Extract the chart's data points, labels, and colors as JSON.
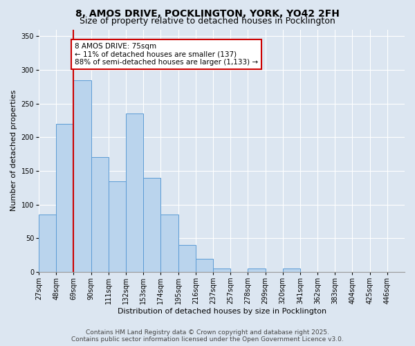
{
  "title_line1": "8, AMOS DRIVE, POCKLINGTON, YORK, YO42 2FH",
  "title_line2": "Size of property relative to detached houses in Pocklington",
  "xlabel": "Distribution of detached houses by size in Pocklington",
  "ylabel": "Number of detached properties",
  "bin_labels": [
    "27sqm",
    "48sqm",
    "69sqm",
    "90sqm",
    "111sqm",
    "132sqm",
    "153sqm",
    "174sqm",
    "195sqm",
    "216sqm",
    "237sqm",
    "257sqm",
    "278sqm",
    "299sqm",
    "320sqm",
    "341sqm",
    "362sqm",
    "383sqm",
    "404sqm",
    "425sqm",
    "446sqm"
  ],
  "bar_values": [
    85,
    220,
    285,
    170,
    135,
    235,
    140,
    85,
    40,
    20,
    5,
    0,
    5,
    0,
    5,
    0,
    0,
    0,
    0,
    0,
    0
  ],
  "bar_color": "#bad4ed",
  "bar_edge_color": "#5b9bd5",
  "vline_x": 2,
  "vline_color": "#cc0000",
  "annotation_text": "8 AMOS DRIVE: 75sqm\n← 11% of detached houses are smaller (137)\n88% of semi-detached houses are larger (1,133) →",
  "annotation_box_color": "#ffffff",
  "annotation_box_edge": "#cc0000",
  "ylim": [
    0,
    360
  ],
  "yticks": [
    0,
    50,
    100,
    150,
    200,
    250,
    300,
    350
  ],
  "background_color": "#dce6f1",
  "plot_bg_color": "#dce6f1",
  "footer_line1": "Contains HM Land Registry data © Crown copyright and database right 2025.",
  "footer_line2": "Contains public sector information licensed under the Open Government Licence v3.0.",
  "title_fontsize": 10,
  "subtitle_fontsize": 9,
  "axis_label_fontsize": 8,
  "tick_fontsize": 7,
  "annotation_fontsize": 7.5,
  "footer_fontsize": 6.5
}
